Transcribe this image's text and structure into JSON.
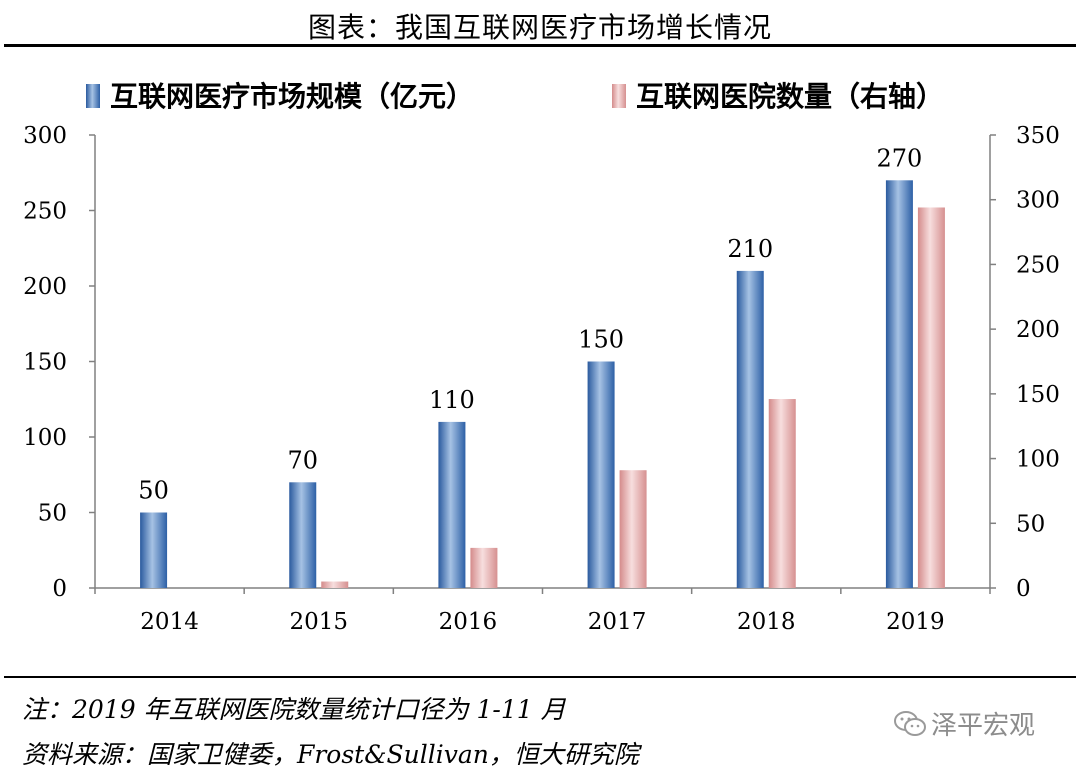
{
  "title": "图表：我国互联网医疗市场增长情况",
  "notes": {
    "note": "注：2019 年互联网医院数量统计口径为 1-11 月",
    "source": "资料来源：国家卫健委，Frost&Sullivan，恒大研究院"
  },
  "watermark": {
    "text": "泽平宏观",
    "icon": "wechat-icon"
  },
  "colors": {
    "series1": "#4a7ebf",
    "series2": "#e4a5a5",
    "axis": "#808080"
  },
  "chart_data": {
    "type": "bar",
    "categories": [
      "2014",
      "2015",
      "2016",
      "2017",
      "2018",
      "2019"
    ],
    "series": [
      {
        "name": "互联网医疗市场规模（亿元）",
        "axis": "left",
        "values": [
          50,
          70,
          110,
          150,
          210,
          270
        ],
        "labels": [
          "50",
          "70",
          "110",
          "150",
          "210",
          "270"
        ]
      },
      {
        "name": "互联网医院数量（右轴）",
        "axis": "right",
        "values": [
          0,
          5,
          31,
          91,
          146,
          294
        ]
      }
    ],
    "y_left": {
      "ylim": [
        0,
        300
      ],
      "ticks": [
        "0",
        "50",
        "100",
        "150",
        "200",
        "250",
        "300"
      ]
    },
    "y_right": {
      "ylim": [
        0,
        350
      ],
      "ticks": [
        "0",
        "50",
        "100",
        "150",
        "200",
        "250",
        "300",
        "350"
      ]
    },
    "legend": "top",
    "grid": false
  }
}
